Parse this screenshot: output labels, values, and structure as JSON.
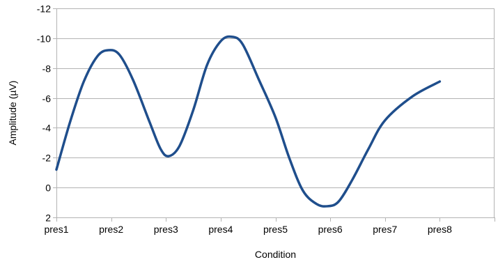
{
  "chart_data": {
    "type": "line",
    "title": "",
    "xlabel": "Condition",
    "ylabel": "Amplitude (µV)",
    "categories": [
      "pres1",
      "pres2",
      "pres3",
      "pres4",
      "pres5",
      "pres6",
      "pres7",
      "pres8"
    ],
    "x_slots": 8,
    "ylim": [
      2,
      -12
    ],
    "y_inverted": true,
    "y_ticks": [
      -12,
      -10,
      -8,
      -6,
      -4,
      -2,
      0,
      2
    ],
    "grid": "horizontal",
    "legend": "none",
    "series": [
      {
        "name": "",
        "color": "#1f4e8c",
        "points": [
          {
            "x": 0.0,
            "y": -1.2
          },
          {
            "x": 0.25,
            "y": -4.4
          },
          {
            "x": 0.5,
            "y": -7.1
          },
          {
            "x": 0.75,
            "y": -8.8
          },
          {
            "x": 0.95,
            "y": -9.2
          },
          {
            "x": 1.15,
            "y": -8.9
          },
          {
            "x": 1.4,
            "y": -7.2
          },
          {
            "x": 1.7,
            "y": -4.4
          },
          {
            "x": 1.9,
            "y": -2.6
          },
          {
            "x": 2.05,
            "y": -2.1
          },
          {
            "x": 2.25,
            "y": -2.8
          },
          {
            "x": 2.5,
            "y": -5.2
          },
          {
            "x": 2.75,
            "y": -8.2
          },
          {
            "x": 3.0,
            "y": -9.8
          },
          {
            "x": 3.2,
            "y": -10.1
          },
          {
            "x": 3.4,
            "y": -9.6
          },
          {
            "x": 3.7,
            "y": -7.2
          },
          {
            "x": 4.0,
            "y": -4.7
          },
          {
            "x": 4.25,
            "y": -2.0
          },
          {
            "x": 4.5,
            "y": 0.2
          },
          {
            "x": 4.75,
            "y": 1.1
          },
          {
            "x": 4.95,
            "y": 1.25
          },
          {
            "x": 5.15,
            "y": 0.95
          },
          {
            "x": 5.4,
            "y": -0.5
          },
          {
            "x": 5.7,
            "y": -2.6
          },
          {
            "x": 6.0,
            "y": -4.5
          },
          {
            "x": 6.5,
            "y": -6.1
          },
          {
            "x": 7.0,
            "y": -7.1
          }
        ]
      }
    ]
  }
}
